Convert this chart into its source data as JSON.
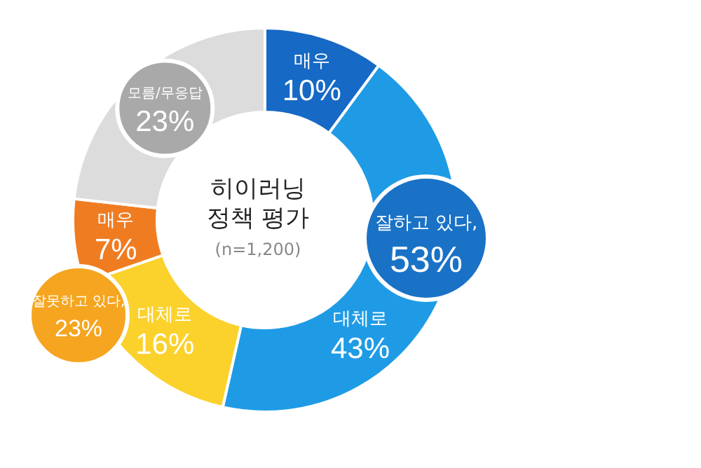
{
  "chart_data": {
    "type": "donut",
    "title": "히이러닝\n정책 평가",
    "subtitle": "(n=1,200)",
    "categories": [
      "매우",
      "대체로",
      "대체로",
      "매우",
      "모름/무응답"
    ],
    "values": [
      10,
      43,
      16,
      7,
      23
    ],
    "value_labels": [
      "10%",
      "43%",
      "16%",
      "7%",
      "23%"
    ],
    "colors": [
      "#1669c4",
      "#1f9be6",
      "#fbd12c",
      "#f07c22",
      "#dcdcdc"
    ],
    "annotations": [
      "잘하고 있다,\n53%",
      "잘못하고 있다,\n23%"
    ]
  }
}
